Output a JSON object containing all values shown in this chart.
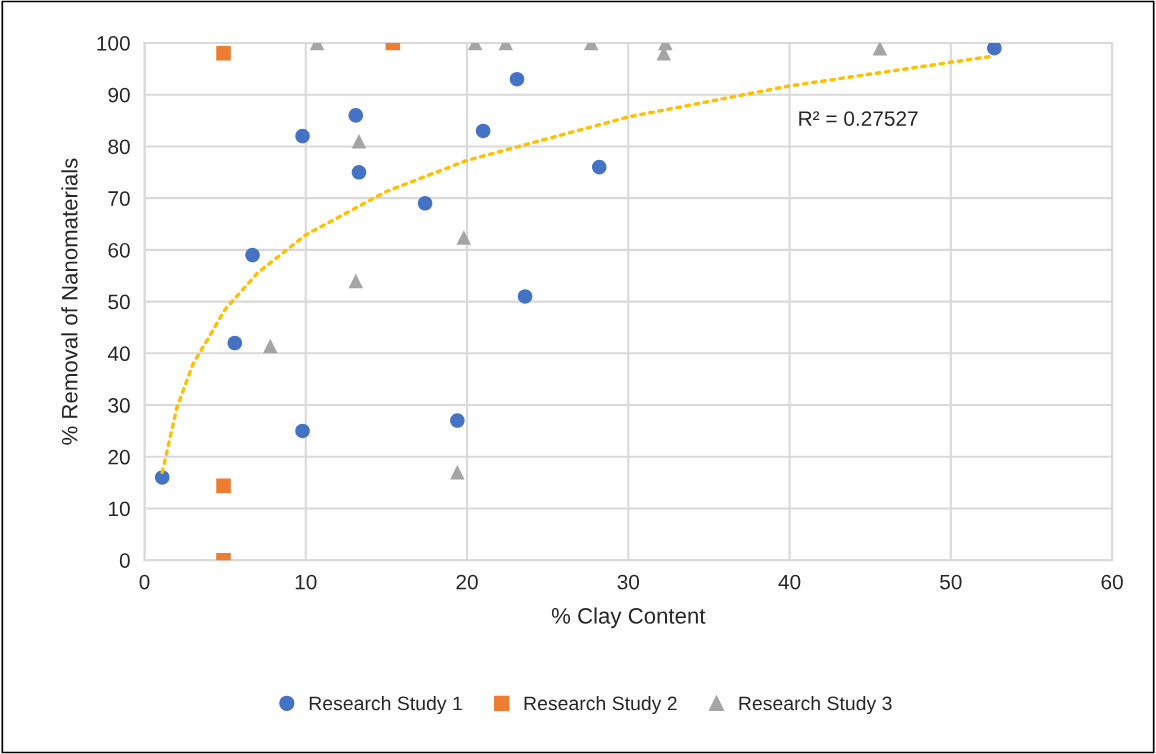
{
  "chart_data": {
    "type": "scatter",
    "xlabel": "% Clay Content",
    "ylabel": "% Removal of Nanomaterials",
    "xlim": [
      0,
      60
    ],
    "xticks": [
      0,
      10,
      20,
      30,
      40,
      50,
      60
    ],
    "ylim": [
      0,
      100
    ],
    "yticks": [
      0,
      10,
      20,
      30,
      40,
      50,
      60,
      70,
      80,
      90,
      100
    ],
    "grid": true,
    "legend": "bottom",
    "annotations": [
      "R² = 0.27527"
    ],
    "series": [
      {
        "name": "Research Study 1",
        "color": "#4472c4",
        "marker": "circle",
        "x": [
          1.1,
          5.6,
          6.7,
          9.8,
          9.8,
          13.1,
          13.3,
          17.4,
          19.4,
          21,
          23.1,
          23.6,
          28.2,
          52.7
        ],
        "values": [
          16,
          42,
          59,
          25,
          82,
          86,
          75,
          69,
          27,
          83,
          93,
          51,
          76,
          99
        ]
      },
      {
        "name": "Research Study 2",
        "color": "#ed7d31",
        "marker": "square",
        "x": [
          4.9,
          4.9,
          4.9,
          15.4
        ],
        "values": [
          0,
          14.4,
          98,
          100
        ]
      },
      {
        "name": "Research Study 3",
        "color": "#a5a5a5",
        "marker": "triangle",
        "x": [
          7.8,
          10.7,
          13.1,
          13.3,
          19.4,
          19.8,
          20.5,
          22.4,
          27.7,
          32.2,
          32.3,
          45.6
        ],
        "values": [
          41.4,
          100,
          54,
          81,
          17,
          62.4,
          100,
          100,
          100,
          98,
          100,
          99
        ]
      },
      {
        "type": "line",
        "color": "#ffc000",
        "marker": "none",
        "line_style": "dotted",
        "x": [
          1.1,
          2,
          3,
          5,
          7,
          10,
          15,
          20,
          30,
          40,
          52.7
        ],
        "values": [
          17,
          29.4,
          37.9,
          48.5,
          55.5,
          62.9,
          71.3,
          77.3,
          85.7,
          91.7,
          97.5
        ]
      }
    ]
  }
}
